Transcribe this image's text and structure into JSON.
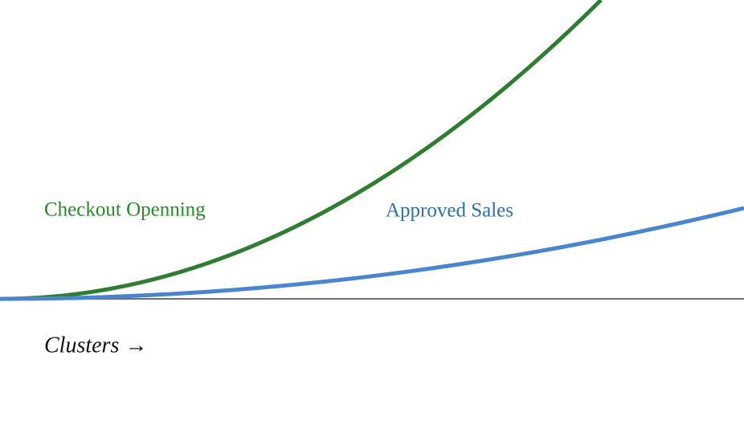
{
  "labels": {
    "green_curve": "Checkout Openning",
    "blue_curve": "Approved Sales",
    "x_axis": "Clusters →"
  }
}
